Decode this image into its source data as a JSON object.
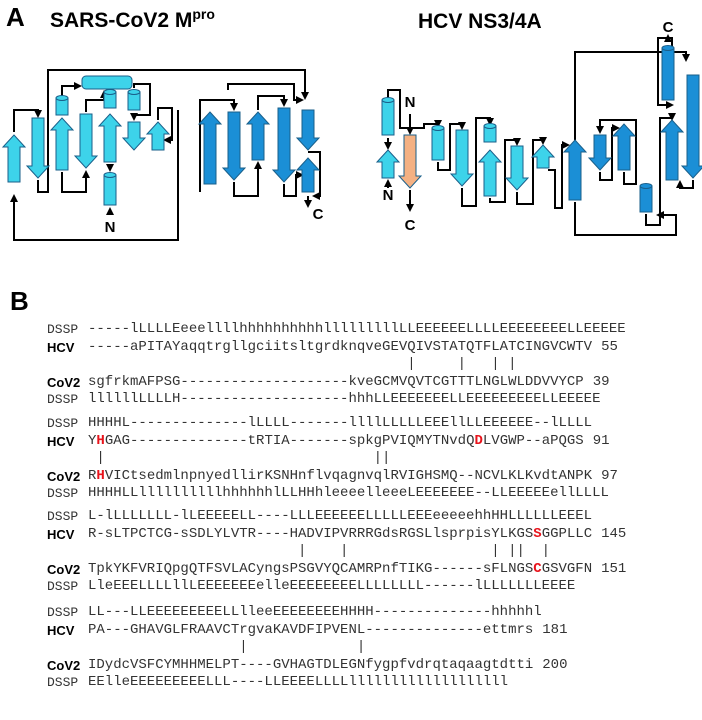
{
  "panel_a": {
    "label": "A",
    "diagrams": [
      {
        "title": "SARS-CoV2 M",
        "title_sup": "pro",
        "termini": [
          "N",
          "C"
        ]
      },
      {
        "title": "HCV NS3/4A",
        "termini": [
          "N",
          "N",
          "C",
          "C"
        ]
      }
    ]
  },
  "panel_b": {
    "label": "B",
    "blocks": [
      {
        "rows": [
          {
            "label": "DSSP",
            "seq": [
              "-----lLLLLEeeellllhhhhhhhhhhlllllllllLLEEEEEELLLLEEEEEEEELLEEEEE"
            ]
          },
          {
            "label": "HCV",
            "seq": [
              "-----aPITAYaqqtrgllgciitsltgrdknqveGEVQIVSTATQTFLATCINGVCWTV"
            ],
            "end": 55
          },
          {
            "match": "                                      |     |   | |"
          },
          {
            "label": "CoV2",
            "seq": [
              "sgfrkmAFPSG--------------------kveGCMVQVTCGTTTLNGLWLDDVVYCP"
            ],
            "end": 39
          },
          {
            "label": "DSSP",
            "seq": [
              "llllllLLLLH--------------------hhhLLEEEEEEELLEEEEEEEEELLEEEEE"
            ]
          }
        ]
      },
      {
        "rows": [
          {
            "label": "DSSP",
            "seq": [
              "HHHHL--------------lLLLL-------llllLLLLLEEEllLLEEEEEE--lLLLL"
            ]
          },
          {
            "label": "HCV",
            "seq": [
              "Y",
              {
                "text": "H",
                "color": "#e8141c"
              },
              "GAG--------------tRTIA-------spkgPVIQMYTNvdQ",
              {
                "text": "D",
                "color": "#e8141c"
              },
              "LVGWP--aPQGS"
            ],
            "end": 91
          },
          {
            "match": " |                                ||"
          },
          {
            "label": "CoV2",
            "seq": [
              "R",
              {
                "text": "H",
                "color": "#e8141c"
              },
              "VICtsedmlnpnyedllirKSNHnflvqagnvqlRVIGHSMQ--NCVLKLKvdtANPK"
            ],
            "end": 97
          },
          {
            "label": "DSSP",
            "seq": [
              "HHHHLLllllllllllhhhhhhlLLHHhleeeelleeeLEEEEEEE--LLEEEEEellLLLL"
            ]
          }
        ]
      },
      {
        "rows": [
          {
            "label": "DSSP",
            "seq": [
              "L-lLLLLLLL-lLEEEEELL----LLLEEEEEELLLLLEEEeeeeehhHHLLLLLLEEEL"
            ]
          },
          {
            "label": "HCV",
            "seq": [
              "R-sLTPCTCG-sSDLYLVTR----HADVIPVRRRGdsRGSLlsprpisYLKGS",
              {
                "text": "S",
                "color": "#e8141c"
              },
              "GGPLLC"
            ],
            "end": 145
          },
          {
            "match": "                         |    |                 | ||  |"
          },
          {
            "label": "CoV2",
            "seq": [
              "TpkYKFVRIQpgQTFSVLACyngsPSGVYQCAMRPnfTIKG------sFLNGS",
              {
                "text": "C",
                "color": "#e8141c"
              },
              "GSVGFN"
            ],
            "end": 151
          },
          {
            "label": "DSSP",
            "seq": [
              "LleEEELLLLllLEEEEEEEelleEEEEEEEELLLLLLLL------lLLLLLLLEEEE"
            ]
          }
        ]
      },
      {
        "rows": [
          {
            "label": "DSSP",
            "seq": [
              "LL---LLEEEEEEEEELLlleeEEEEEEEEHHHH--------------hhhhhl"
            ]
          },
          {
            "label": "HCV",
            "seq": [
              "PA---GHAVGLFRAAVCTrgvaKAVDFIPVENL--------------ettmrs"
            ],
            "end": 181
          },
          {
            "match": "                  |             |"
          },
          {
            "label": "CoV2",
            "seq": [
              "IDydcVSFCYMHHMELPT----GVHAGTDLEGNfygpfvdrqtaqaagtdtti"
            ],
            "end": 200
          },
          {
            "label": "DSSP",
            "seq": [
              "EElleEEEEEEEEELLL----LLEEEELLLLlllllllllllllllllll"
            ]
          }
        ]
      }
    ]
  }
}
